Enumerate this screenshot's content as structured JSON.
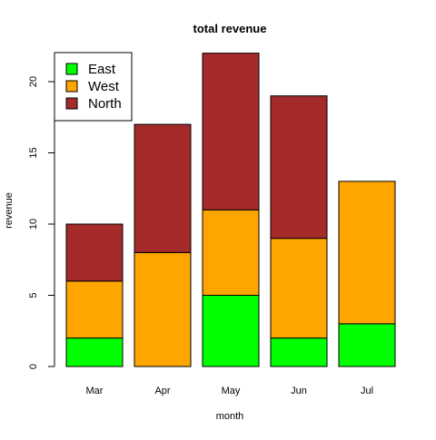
{
  "chart_data": {
    "type": "bar",
    "stacked": true,
    "title": "total revenue",
    "xlabel": "month",
    "ylabel": "revenue",
    "categories": [
      "Mar",
      "Apr",
      "May",
      "Jun",
      "Jul"
    ],
    "series": [
      {
        "name": "East",
        "color": "#00ff00",
        "values": [
          2,
          0,
          5,
          2,
          3
        ]
      },
      {
        "name": "West",
        "color": "#ffa500",
        "values": [
          4,
          8,
          6,
          7,
          10
        ]
      },
      {
        "name": "North",
        "color": "#a52a2a",
        "values": [
          4,
          9,
          11,
          10,
          0
        ]
      }
    ],
    "ylim": [
      0,
      22
    ],
    "yticks": [
      0,
      5,
      10,
      15,
      20
    ],
    "grid": false,
    "legend": {
      "position": "top-left",
      "entries": [
        "East",
        "West",
        "North"
      ]
    }
  }
}
